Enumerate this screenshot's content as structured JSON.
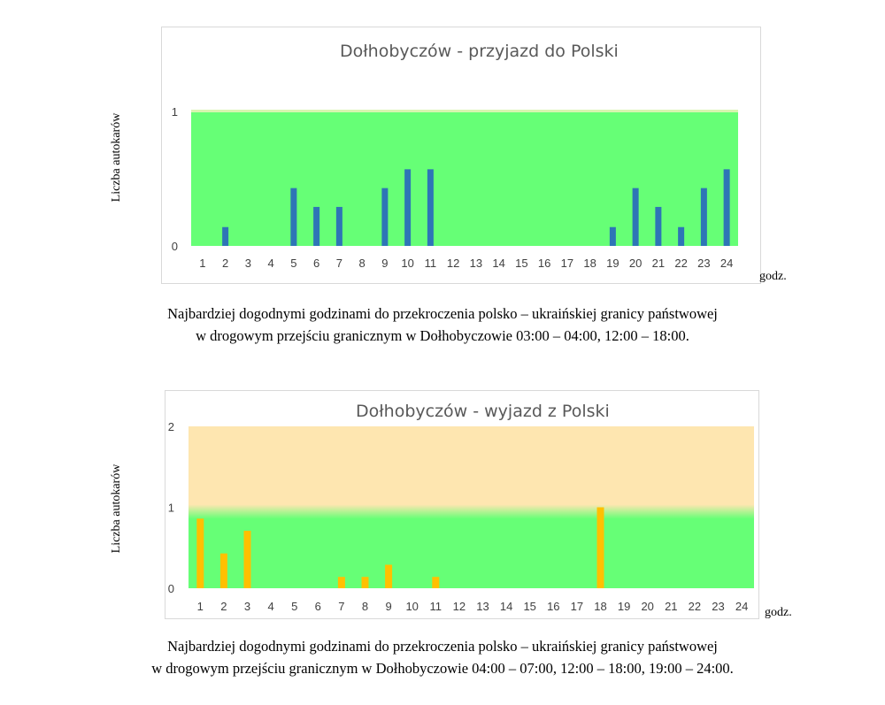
{
  "chart_data": [
    {
      "type": "bar",
      "title": "Dołhobyczów - przyjazd do Polski",
      "ylabel": "Liczba autokarów",
      "xlabel": "godz.",
      "categories": [
        "1",
        "2",
        "3",
        "4",
        "5",
        "6",
        "7",
        "8",
        "9",
        "10",
        "11",
        "12",
        "13",
        "14",
        "15",
        "16",
        "17",
        "18",
        "19",
        "20",
        "21",
        "22",
        "23",
        "24"
      ],
      "values": [
        0,
        0.14,
        0,
        0,
        0.43,
        0.29,
        0.29,
        0,
        0.43,
        0.57,
        0.57,
        0,
        0,
        0,
        0,
        0,
        0,
        0,
        0.14,
        0.43,
        0.29,
        0.14,
        0.43,
        0.57
      ],
      "yticks": [
        0,
        1
      ],
      "ylim": [
        0,
        1
      ],
      "bar_color": "#2e75b6",
      "bands": [
        {
          "from": 0,
          "to": 1,
          "color": "#66ff76"
        }
      ],
      "grid": false,
      "caption": [
        "Najbardziej dogodnymi godzinami do przekroczenia polsko – ukraińskiej granicy państwowej",
        "w drogowym przejściu granicznym w Dołhobyczowie 03:00 – 04:00, 12:00 – 18:00."
      ]
    },
    {
      "type": "bar",
      "title": "Dołhobyczów - wyjazd z Polski",
      "ylabel": "Liczba autokarów",
      "xlabel": "godz.",
      "categories": [
        "1",
        "2",
        "3",
        "4",
        "5",
        "6",
        "7",
        "8",
        "9",
        "10",
        "11",
        "12",
        "13",
        "14",
        "15",
        "16",
        "17",
        "18",
        "19",
        "20",
        "21",
        "22",
        "23",
        "24"
      ],
      "values": [
        0.86,
        0.43,
        0.71,
        0,
        0,
        0,
        0.14,
        0.14,
        0.29,
        0,
        0.14,
        0,
        0,
        0,
        0,
        0,
        0,
        1,
        0,
        0,
        0,
        0,
        0,
        0
      ],
      "yticks": [
        0,
        1,
        2
      ],
      "ylim": [
        0,
        2
      ],
      "bar_color": "#ffc000",
      "bands": [
        {
          "from": 0,
          "to": 1,
          "color": "#66ff76"
        },
        {
          "from": 1,
          "to": 2,
          "color": "#fee6b0"
        }
      ],
      "grid": false,
      "caption": [
        "Najbardziej dogodnymi godzinami do przekroczenia polsko – ukraińskiej granicy państwowej",
        "w drogowym przejściu granicznym w Dołhobyczowie 04:00 – 07:00, 12:00 – 18:00, 19:00 – 24:00."
      ]
    }
  ]
}
